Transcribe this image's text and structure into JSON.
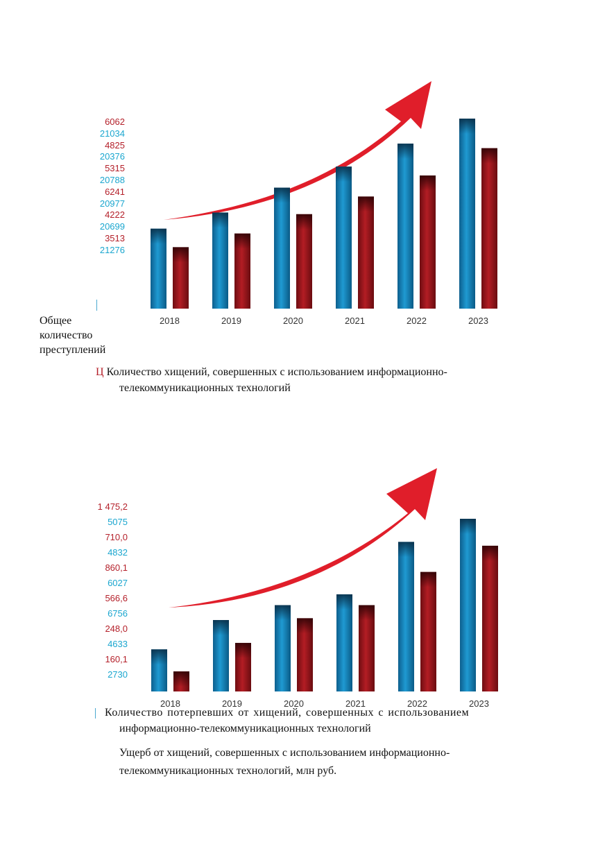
{
  "chart_data": [
    {
      "type": "bar",
      "categories": [
        "2018",
        "2019",
        "2020",
        "2021",
        "2022",
        "2023"
      ],
      "value_labels": [
        "6062",
        "21034",
        "4825",
        "20376",
        "5315",
        "20788",
        "6241",
        "20977",
        "4222",
        "20699",
        "3513",
        "21276"
      ],
      "ylabel": "Общее количество преступлений",
      "legend_marker": "Ц",
      "legend_text_1": "Количество хищений, совершенных с использованием информационно-",
      "legend_text_2": "телекоммуникационных технологий",
      "series": [
        {
          "color": "#1b7fb4",
          "values": [
            3513,
            4222,
            5315,
            6241,
            7250,
            8350
          ]
        },
        {
          "color": "#8e1419",
          "values": [
            2700,
            3300,
            4150,
            4925,
            5850,
            7050
          ]
        }
      ]
    },
    {
      "type": "bar",
      "categories": [
        "2018",
        "2019",
        "2020",
        "2021",
        "2022",
        "2023"
      ],
      "value_labels": [
        "1 475,2",
        "5075",
        "710,0",
        "4832",
        "860,1",
        "6027",
        "566,6",
        "6756",
        "248,0",
        "4633",
        "160,1",
        "2730"
      ],
      "legend_text_1": "Количество потерпевших от хищений, совершенных с использованием",
      "legend_text_2": "информационно-телекоммуникационных технологий",
      "legend_text_3": "Ущерб от хищений, совершенных с использованием информационно-",
      "legend_text_4": "телекоммуникационных технологий, млн руб.",
      "series": [
        {
          "color": "#1b7fb4",
          "values": [
            2730,
            4633,
            5600,
            6300,
            9700,
            11200
          ]
        },
        {
          "color": "#8e1419",
          "values": [
            1300,
            3150,
            4750,
            5600,
            7750,
            9450
          ]
        }
      ]
    }
  ],
  "colors": {
    "arrow": "#e01e2a",
    "blue_bar": "#1b7fb4",
    "red_bar": "#8e1419",
    "label_red": "#b4202a",
    "label_blue": "#1aa6cf"
  }
}
